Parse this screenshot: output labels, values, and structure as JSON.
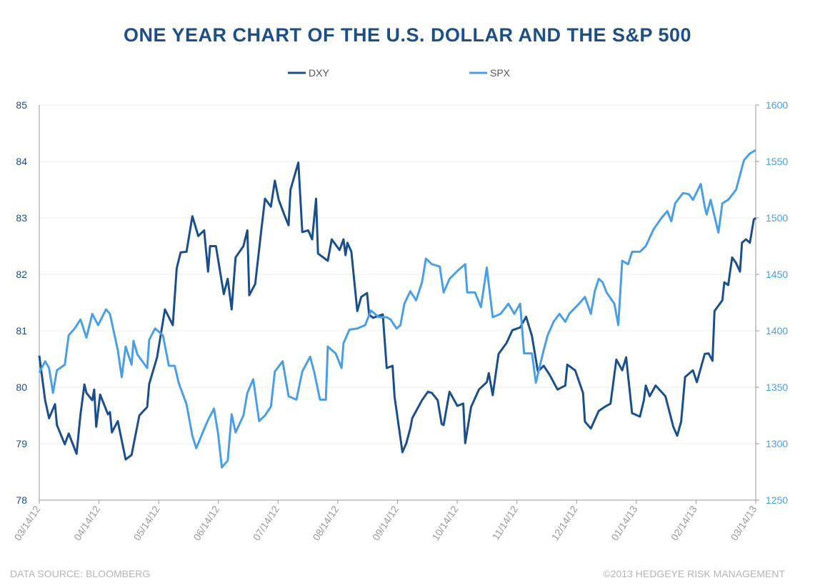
{
  "chart_data": {
    "type": "line",
    "title": "ONE YEAR CHART OF THE U.S. DOLLAR AND THE S&P 500",
    "x_unit": "days since 03/14/12",
    "x_ticks": [
      "03/14/12",
      "04/14/12",
      "05/14/12",
      "06/14/12",
      "07/14/12",
      "08/14/12",
      "09/14/12",
      "10/14/12",
      "11/14/12",
      "12/14/12",
      "01/14/13",
      "02/14/13",
      "03/14/13"
    ],
    "y_left": {
      "range": [
        78,
        85
      ],
      "ticks": [
        "78",
        "79",
        "80",
        "81",
        "82",
        "83",
        "84",
        "85"
      ]
    },
    "y_right": {
      "range": [
        1250,
        1600
      ],
      "ticks": [
        "1250",
        "1300",
        "1350",
        "1400",
        "1450",
        "1500",
        "1550",
        "1600"
      ]
    },
    "legend_position": "top-center",
    "grid": true,
    "series": [
      {
        "name": "DXY",
        "axis": "left",
        "color": "#1b4f8b",
        "points": [
          [
            0,
            80.56
          ],
          [
            3,
            79.77
          ],
          [
            5,
            79.45
          ],
          [
            8,
            79.7
          ],
          [
            9,
            79.33
          ],
          [
            13,
            78.99
          ],
          [
            15,
            79.18
          ],
          [
            19,
            78.82
          ],
          [
            21,
            79.52
          ],
          [
            23,
            80.05
          ],
          [
            24,
            79.9
          ],
          [
            27,
            79.77
          ],
          [
            28,
            79.96
          ],
          [
            29,
            79.3
          ],
          [
            31,
            79.87
          ],
          [
            35,
            79.52
          ],
          [
            36,
            79.56
          ],
          [
            37,
            79.2
          ],
          [
            40,
            79.4
          ],
          [
            44,
            78.72
          ],
          [
            47,
            78.8
          ],
          [
            51,
            79.5
          ],
          [
            55,
            79.65
          ],
          [
            56,
            80.06
          ],
          [
            60,
            80.53
          ],
          [
            64,
            81.38
          ],
          [
            68,
            81.1
          ],
          [
            70,
            82.11
          ],
          [
            72,
            82.39
          ],
          [
            75,
            82.4
          ],
          [
            78,
            83.03
          ],
          [
            81,
            82.68
          ],
          [
            84,
            82.78
          ],
          [
            86,
            82.05
          ],
          [
            87,
            82.5
          ],
          [
            90,
            82.5
          ],
          [
            94,
            81.65
          ],
          [
            96,
            81.92
          ],
          [
            98,
            81.38
          ],
          [
            100,
            82.3
          ],
          [
            104,
            82.5
          ],
          [
            106,
            82.78
          ],
          [
            107,
            81.63
          ],
          [
            110,
            81.83
          ],
          [
            113,
            82.75
          ],
          [
            115,
            83.34
          ],
          [
            118,
            83.2
          ],
          [
            120,
            83.66
          ],
          [
            122,
            83.32
          ],
          [
            125,
            83.04
          ],
          [
            127,
            82.87
          ],
          [
            128,
            83.5
          ],
          [
            132,
            83.98
          ],
          [
            134,
            82.75
          ],
          [
            137,
            82.78
          ],
          [
            139,
            82.62
          ],
          [
            141,
            83.34
          ],
          [
            142,
            82.37
          ],
          [
            147,
            82.24
          ],
          [
            149,
            82.62
          ],
          [
            153,
            82.43
          ],
          [
            155,
            82.62
          ],
          [
            156,
            82.34
          ],
          [
            157,
            82.56
          ],
          [
            159,
            82.4
          ],
          [
            162,
            81.35
          ],
          [
            164,
            81.6
          ],
          [
            167,
            81.67
          ],
          [
            168,
            81.29
          ],
          [
            170,
            81.23
          ],
          [
            175,
            81.29
          ],
          [
            177,
            80.34
          ],
          [
            180,
            80.38
          ],
          [
            181,
            79.83
          ],
          [
            185,
            78.85
          ],
          [
            187,
            79.01
          ],
          [
            189,
            79.27
          ],
          [
            190,
            79.45
          ],
          [
            195,
            79.77
          ],
          [
            198,
            79.92
          ],
          [
            200,
            79.9
          ],
          [
            203,
            79.77
          ],
          [
            205,
            79.35
          ],
          [
            206,
            79.33
          ],
          [
            209,
            79.92
          ],
          [
            213,
            79.67
          ],
          [
            216,
            79.71
          ],
          [
            217,
            79.01
          ],
          [
            220,
            79.65
          ],
          [
            224,
            79.96
          ],
          [
            228,
            80.09
          ],
          [
            229,
            80.25
          ],
          [
            231,
            79.86
          ],
          [
            234,
            80.59
          ],
          [
            238,
            80.78
          ],
          [
            241,
            81.01
          ],
          [
            245,
            81.06
          ],
          [
            248,
            81.25
          ],
          [
            251,
            80.91
          ],
          [
            254,
            80.28
          ],
          [
            257,
            80.38
          ],
          [
            260,
            80.22
          ],
          [
            264,
            79.96
          ],
          [
            268,
            80.03
          ],
          [
            269,
            80.4
          ],
          [
            273,
            80.3
          ],
          [
            277,
            79.9
          ],
          [
            278,
            79.39
          ],
          [
            281,
            79.27
          ],
          [
            285,
            79.58
          ],
          [
            288,
            79.65
          ],
          [
            291,
            79.71
          ],
          [
            294,
            80.49
          ],
          [
            297,
            80.3
          ],
          [
            299,
            80.53
          ],
          [
            302,
            79.54
          ],
          [
            306,
            79.48
          ],
          [
            308,
            79.77
          ],
          [
            309,
            80.03
          ],
          [
            311,
            79.84
          ],
          [
            314,
            80.03
          ],
          [
            319,
            79.84
          ],
          [
            323,
            79.3
          ],
          [
            325,
            79.14
          ],
          [
            327,
            79.39
          ],
          [
            329,
            80.18
          ],
          [
            333,
            80.3
          ],
          [
            335,
            80.09
          ],
          [
            339,
            80.59
          ],
          [
            341,
            80.6
          ],
          [
            343,
            80.47
          ],
          [
            344,
            81.35
          ],
          [
            348,
            81.54
          ],
          [
            349,
            81.86
          ],
          [
            351,
            81.81
          ],
          [
            353,
            82.3
          ],
          [
            355,
            82.2
          ],
          [
            357,
            82.05
          ],
          [
            358,
            82.56
          ],
          [
            360,
            82.62
          ],
          [
            362,
            82.56
          ],
          [
            364,
            82.97
          ],
          [
            365,
            83.0
          ]
        ]
      },
      {
        "name": "SPX",
        "axis": "right",
        "color": "#4a9fe4",
        "points": [
          [
            0,
            1363
          ],
          [
            3,
            1373
          ],
          [
            5,
            1367
          ],
          [
            7,
            1345
          ],
          [
            9,
            1365
          ],
          [
            13,
            1370
          ],
          [
            15,
            1396
          ],
          [
            18,
            1402
          ],
          [
            21,
            1410
          ],
          [
            24,
            1394
          ],
          [
            27,
            1415
          ],
          [
            30,
            1405
          ],
          [
            34,
            1419
          ],
          [
            36,
            1415
          ],
          [
            40,
            1383
          ],
          [
            42,
            1359
          ],
          [
            44,
            1386
          ],
          [
            47,
            1370
          ],
          [
            48,
            1391
          ],
          [
            50,
            1379
          ],
          [
            55,
            1367
          ],
          [
            56,
            1392
          ],
          [
            59,
            1402
          ],
          [
            63,
            1396
          ],
          [
            66,
            1369
          ],
          [
            69,
            1369
          ],
          [
            71,
            1354
          ],
          [
            75,
            1335
          ],
          [
            78,
            1307
          ],
          [
            80,
            1296
          ],
          [
            84,
            1313
          ],
          [
            86,
            1321
          ],
          [
            89,
            1331
          ],
          [
            91,
            1310
          ],
          [
            93,
            1279
          ],
          [
            96,
            1285
          ],
          [
            98,
            1326
          ],
          [
            100,
            1310
          ],
          [
            104,
            1325
          ],
          [
            106,
            1345
          ],
          [
            109,
            1357
          ],
          [
            112,
            1320
          ],
          [
            115,
            1325
          ],
          [
            118,
            1333
          ],
          [
            120,
            1364
          ],
          [
            124,
            1373
          ],
          [
            127,
            1342
          ],
          [
            131,
            1339
          ],
          [
            134,
            1364
          ],
          [
            138,
            1377
          ],
          [
            140,
            1364
          ],
          [
            143,
            1339
          ],
          [
            146,
            1339
          ],
          [
            147,
            1386
          ],
          [
            151,
            1380
          ],
          [
            154,
            1367
          ],
          [
            155,
            1389
          ],
          [
            158,
            1401
          ],
          [
            162,
            1402
          ],
          [
            166,
            1405
          ],
          [
            169,
            1418
          ],
          [
            173,
            1412
          ],
          [
            177,
            1412
          ],
          [
            179,
            1410
          ],
          [
            182,
            1402
          ],
          [
            184,
            1405
          ],
          [
            186,
            1424
          ],
          [
            189,
            1435
          ],
          [
            192,
            1427
          ],
          [
            195,
            1443
          ],
          [
            197,
            1464
          ],
          [
            200,
            1459
          ],
          [
            204,
            1457
          ],
          [
            206,
            1434
          ],
          [
            209,
            1446
          ],
          [
            213,
            1453
          ],
          [
            217,
            1459
          ],
          [
            218,
            1434
          ],
          [
            222,
            1434
          ],
          [
            225,
            1421
          ],
          [
            228,
            1456
          ],
          [
            231,
            1412
          ],
          [
            235,
            1415
          ],
          [
            239,
            1424
          ],
          [
            242,
            1415
          ],
          [
            245,
            1424
          ],
          [
            247,
            1380
          ],
          [
            251,
            1380
          ],
          [
            253,
            1354
          ],
          [
            257,
            1383
          ],
          [
            259,
            1396
          ],
          [
            262,
            1408
          ],
          [
            265,
            1415
          ],
          [
            268,
            1408
          ],
          [
            270,
            1415
          ],
          [
            275,
            1424
          ],
          [
            278,
            1430
          ],
          [
            281,
            1415
          ],
          [
            283,
            1435
          ],
          [
            285,
            1446
          ],
          [
            287,
            1443
          ],
          [
            289,
            1434
          ],
          [
            293,
            1424
          ],
          [
            295,
            1405
          ],
          [
            297,
            1462
          ],
          [
            300,
            1459
          ],
          [
            302,
            1470
          ],
          [
            306,
            1470
          ],
          [
            309,
            1475
          ],
          [
            313,
            1490
          ],
          [
            317,
            1500
          ],
          [
            320,
            1506
          ],
          [
            322,
            1497
          ],
          [
            324,
            1513
          ],
          [
            328,
            1522
          ],
          [
            331,
            1521
          ],
          [
            333,
            1516
          ],
          [
            337,
            1530
          ],
          [
            339,
            1510
          ],
          [
            340,
            1503
          ],
          [
            342,
            1516
          ],
          [
            346,
            1487
          ],
          [
            348,
            1513
          ],
          [
            351,
            1516
          ],
          [
            355,
            1525
          ],
          [
            359,
            1551
          ],
          [
            362,
            1557
          ],
          [
            365,
            1560
          ]
        ]
      }
    ]
  },
  "footer": {
    "source": "DATA SOURCE: BLOOMBERG",
    "copyright": "©2013 HEDGEYE RISK MANAGEMENT"
  }
}
